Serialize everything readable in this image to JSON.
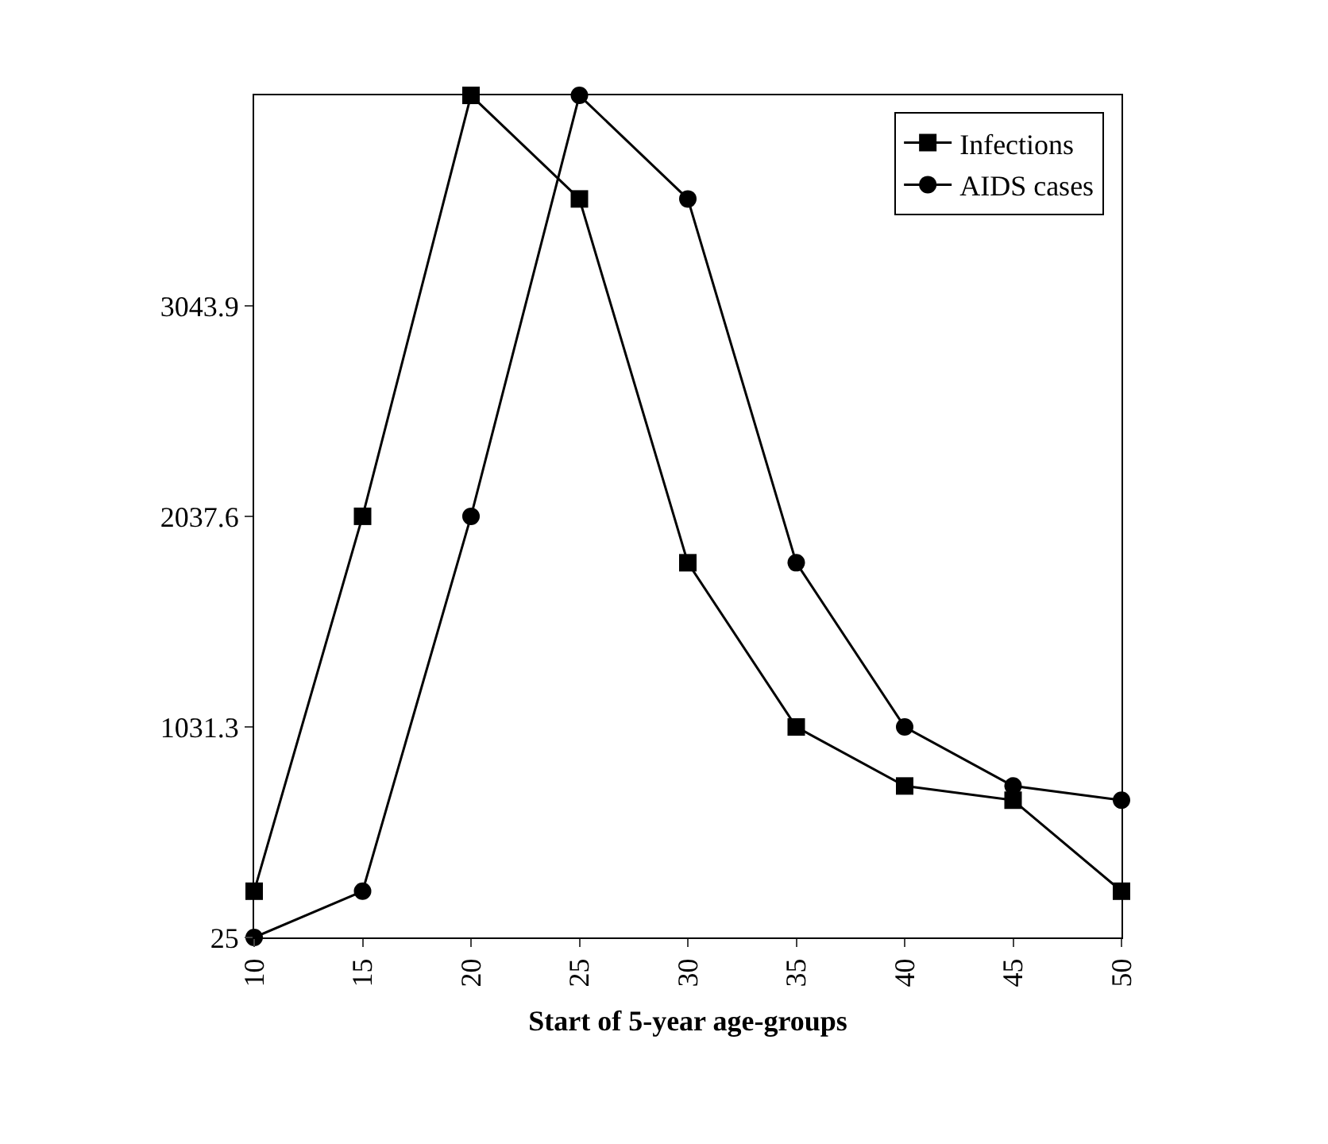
{
  "chart_data": {
    "type": "line",
    "xlabel": "Start of 5-year age-groups",
    "x": [
      10,
      15,
      20,
      25,
      30,
      35,
      40,
      45,
      50
    ],
    "series": [
      {
        "name": "Infections",
        "color": "#000000",
        "marker": "square",
        "values": [
          246,
          2038,
          4050,
          3555,
          1816,
          1031,
          749,
          681,
          246
        ]
      },
      {
        "name": "AIDS cases",
        "color": "#000000",
        "marker": "circle",
        "values": [
          25,
          246,
          2038,
          4050,
          3555,
          1816,
          1031,
          749,
          681
        ]
      }
    ],
    "xlim": [
      10,
      50
    ],
    "xticks": [
      10,
      15,
      20,
      25,
      30,
      35,
      40,
      45,
      50
    ],
    "ylim": [
      25,
      4050.2
    ],
    "yticks": [
      25,
      1031.3,
      2037.6,
      3043.9
    ],
    "legend": "top right",
    "line_style": "solid"
  }
}
